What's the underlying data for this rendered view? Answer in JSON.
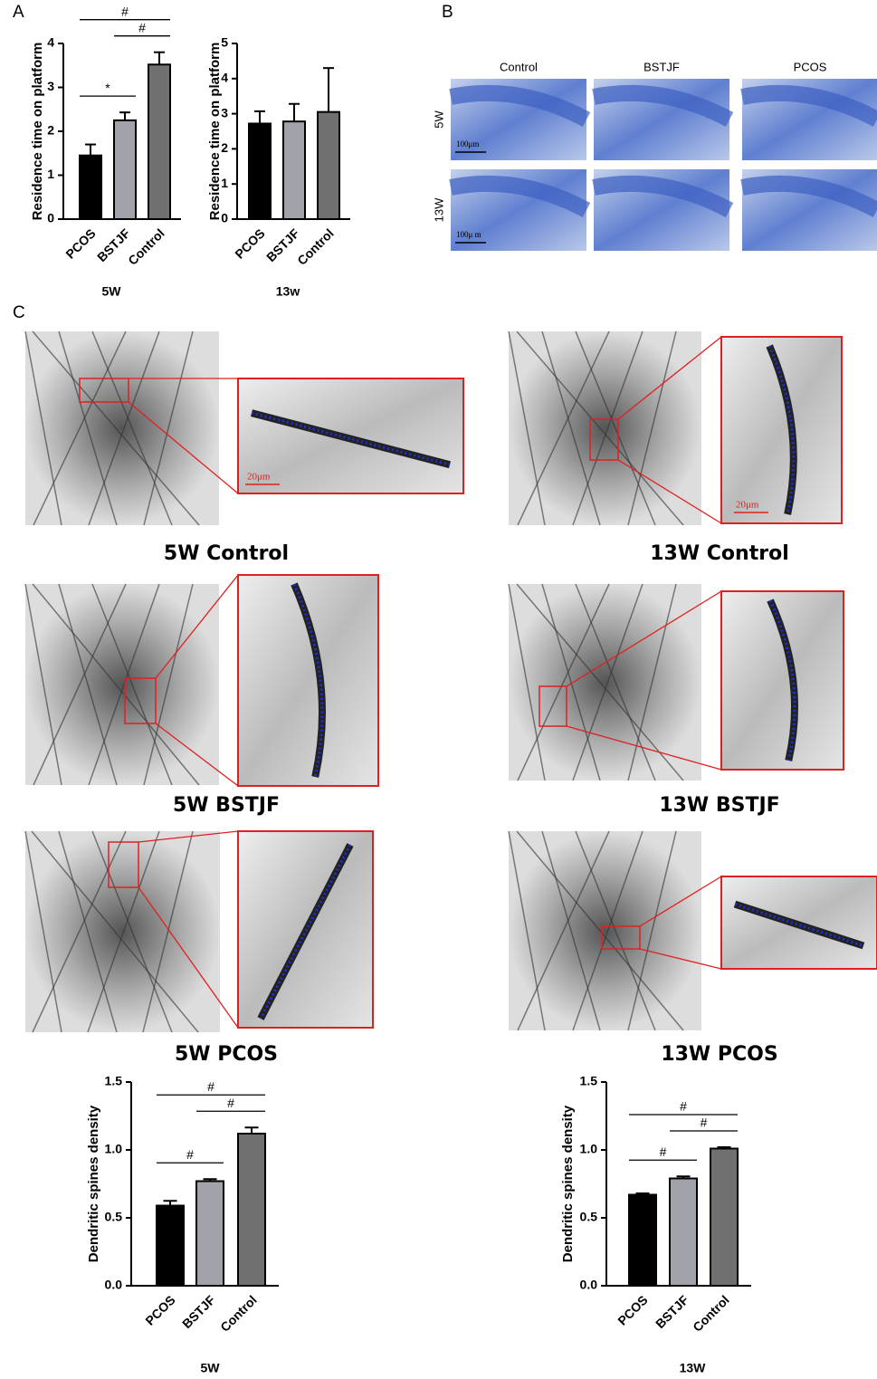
{
  "panels": {
    "A": {
      "letter": "A"
    },
    "B": {
      "letter": "B",
      "columns": [
        "Control",
        "BSTJF",
        "PCOS"
      ],
      "rows": [
        "5W",
        "13W"
      ],
      "scale": [
        "100μm",
        "100μ m"
      ]
    },
    "C": {
      "letter": "C",
      "images": [
        {
          "caption": "5W Control",
          "scale": "20μm"
        },
        {
          "caption": "13W Control",
          "scale": "20μm"
        },
        {
          "caption": "5W BSTJF"
        },
        {
          "caption": "13W BSTJF"
        },
        {
          "caption": "5W PCOS"
        },
        {
          "caption": "13W PCOS"
        }
      ]
    }
  },
  "chart_data": [
    {
      "type": "bar",
      "y_label": "Residence time on platform",
      "x_label": "5W",
      "categories": [
        "PCOS",
        "BSTJF",
        "Control"
      ],
      "values": [
        1.45,
        2.25,
        3.52
      ],
      "errors": [
        0.25,
        0.18,
        0.28
      ],
      "colors": [
        "#000000",
        "#a2a2ab",
        "#707070"
      ],
      "ylim": [
        0,
        4
      ],
      "yticks": [
        0,
        1,
        2,
        3,
        4
      ],
      "annotations": [
        {
          "text": "*",
          "between": [
            "PCOS",
            "BSTJF"
          ]
        },
        {
          "text": "#",
          "between": [
            "BSTJF",
            "Control"
          ]
        },
        {
          "text": "#",
          "between": [
            "PCOS",
            "Control"
          ]
        }
      ]
    },
    {
      "type": "bar",
      "y_label": "Residence time on platform",
      "x_label": "13w",
      "categories": [
        "PCOS",
        "BSTJF",
        "Control"
      ],
      "values": [
        2.72,
        2.78,
        3.05
      ],
      "errors": [
        0.35,
        0.5,
        1.25
      ],
      "colors": [
        "#000000",
        "#a2a2ab",
        "#707070"
      ],
      "ylim": [
        0,
        5
      ],
      "yticks": [
        0,
        1,
        2,
        3,
        4,
        5
      ],
      "annotations": []
    },
    {
      "type": "bar",
      "y_label": "Dendritic spines density",
      "x_label": "5W",
      "categories": [
        "PCOS",
        "BSTJF",
        "Control"
      ],
      "values": [
        0.59,
        0.77,
        1.12
      ],
      "errors": [
        0.035,
        0.015,
        0.045
      ],
      "colors": [
        "#000000",
        "#a2a2ab",
        "#707070"
      ],
      "ylim": [
        0,
        1.5
      ],
      "yticks": [
        {
          "value": 0,
          "label": "0.0"
        },
        0.5,
        {
          "value": 1,
          "label": "1.0"
        },
        1.5
      ],
      "annotations": [
        {
          "text": "#",
          "between": [
            "PCOS",
            "BSTJF"
          ]
        },
        {
          "text": "#",
          "between": [
            "BSTJF",
            "Control"
          ]
        },
        {
          "text": "#",
          "between": [
            "PCOS",
            "Control"
          ]
        }
      ]
    },
    {
      "type": "bar",
      "y_label": "Dendritic spines density",
      "x_label": "13W",
      "categories": [
        "PCOS",
        "BSTJF",
        "Control"
      ],
      "values": [
        0.67,
        0.79,
        1.01
      ],
      "errors": [
        0.01,
        0.015,
        0.01
      ],
      "colors": [
        "#000000",
        "#a2a2ab",
        "#707070"
      ],
      "ylim": [
        0,
        1.5
      ],
      "yticks": [
        {
          "value": 0,
          "label": "0.0"
        },
        0.5,
        {
          "value": 1,
          "label": "1.0"
        },
        1.5
      ],
      "annotations": [
        {
          "text": "#",
          "between": [
            "PCOS",
            "BSTJF"
          ]
        },
        {
          "text": "#",
          "between": [
            "BSTJF",
            "Control"
          ]
        },
        {
          "text": "#",
          "between": [
            "PCOS",
            "Control"
          ]
        }
      ]
    }
  ]
}
